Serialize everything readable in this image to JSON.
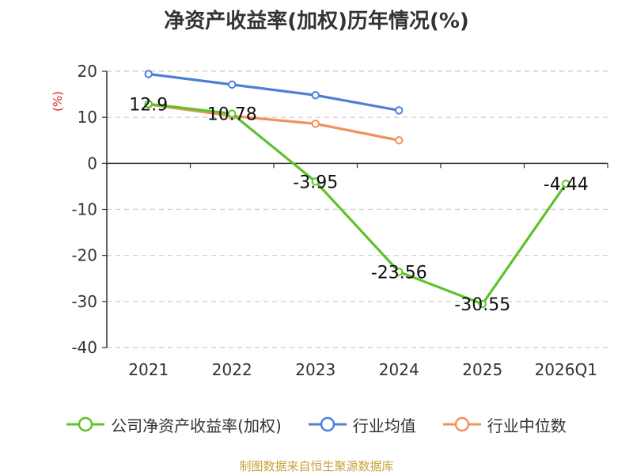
{
  "chart_data": {
    "type": "line",
    "title": "净资产收益率(加权)历年情况(%)",
    "ylabel": "(%)",
    "categories": [
      "2021",
      "2022",
      "2023",
      "2024",
      "2025",
      "2026Q1"
    ],
    "ylim": [
      -40,
      20
    ],
    "yticks": [
      20,
      10,
      0,
      -10,
      -20,
      -30,
      -40
    ],
    "grid": true,
    "legend_position": "bottom",
    "series": [
      {
        "name": "公司净资产收益率(加权)",
        "color": "#5ec22c",
        "values": [
          12.9,
          10.78,
          -3.95,
          -23.56,
          -30.55,
          -4.44
        ],
        "labels": [
          "12.9",
          "10.78",
          "-3.95",
          "-23.56",
          "-30.55",
          "-4.44"
        ]
      },
      {
        "name": "行业均值",
        "color": "#4e7fd8",
        "values": [
          19.4,
          17.1,
          14.8,
          11.5,
          null,
          null
        ]
      },
      {
        "name": "行业中位数",
        "color": "#f48f5c",
        "values": [
          12.8,
          10.3,
          8.6,
          5.0,
          null,
          null
        ]
      }
    ]
  },
  "footer": {
    "source": "制图数据来自恒生聚源数据库"
  }
}
